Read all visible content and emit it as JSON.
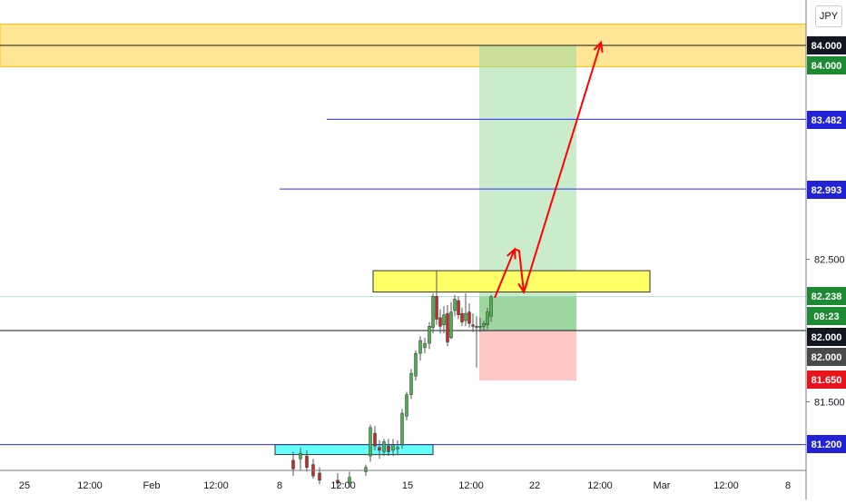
{
  "currency": "JPY",
  "colors": {
    "up": "#26a69a",
    "up_fill": "#4caf50",
    "down": "#ef5350",
    "down_fill": "#c62828",
    "target_zone": "#ffc107",
    "target_zone_fill": "#ffe082",
    "resistance_box": "#ffff66",
    "support_box": "#66ffff",
    "level_line": "#2a2aff",
    "arrow": "#ff0000",
    "profit_zone": "#9fdd9f",
    "loss_zone": "#ffb3b3"
  },
  "chart_data": {
    "type": "candlestick",
    "x_axis": {
      "tick_labels": [
        "25",
        "12:00",
        "Feb",
        "12:00",
        "8",
        "12:00",
        "15",
        "12:00",
        "22",
        "12:00",
        "Mar",
        "12:00",
        "8"
      ]
    },
    "y_axis": {
      "range": [
        80.93,
        84.27
      ],
      "tick_labels": [
        "82.500",
        "81.500"
      ]
    },
    "price_labels": [
      {
        "value": "84.000",
        "style": "black"
      },
      {
        "value": "84.000",
        "style": "green"
      },
      {
        "value": "83.482",
        "style": "blue"
      },
      {
        "value": "82.993",
        "style": "blue"
      },
      {
        "value": "82.238",
        "style": "green"
      },
      {
        "value": "08:23",
        "style": "green"
      },
      {
        "value": "82.000",
        "style": "black"
      },
      {
        "value": "82.000",
        "style": "gray"
      },
      {
        "value": "81.650",
        "style": "red"
      },
      {
        "value": "81.200",
        "style": "blue"
      }
    ],
    "levels": [
      {
        "price": 84.0,
        "color": "black",
        "from_x": 0
      },
      {
        "price": 83.482,
        "color": "blue",
        "from_x": 360
      },
      {
        "price": 82.993,
        "color": "blue",
        "from_x": 308
      },
      {
        "price": 82.238,
        "color": "green-faint",
        "from_x": 0
      },
      {
        "price": 82.0,
        "color": "black",
        "from_x": 0
      },
      {
        "price": 81.2,
        "color": "blue",
        "from_x": 0
      }
    ],
    "zones": {
      "target": {
        "top": 84.15,
        "bottom": 83.85
      },
      "resistance": {
        "top": 82.42,
        "bottom": 82.27,
        "x_from": 411,
        "x_to": 716
      },
      "support": {
        "top": 81.2,
        "bottom": 81.13,
        "x_from": 303,
        "x_to": 477
      }
    },
    "trade": {
      "entry": 82.0,
      "take_profit": 84.0,
      "stop_loss": 81.65,
      "current": 82.238,
      "x_from": 528,
      "x_to": 635
    },
    "projection_path": [
      [
        545,
        82.23
      ],
      [
        567,
        82.57
      ],
      [
        572,
        82.56
      ],
      [
        577,
        82.27
      ],
      [
        662,
        84.02
      ]
    ],
    "candles": [
      {
        "x": 323,
        "o": 81.09,
        "h": 81.15,
        "l": 80.98,
        "c": 81.03
      },
      {
        "x": 331,
        "o": 81.1,
        "h": 81.18,
        "l": 81.02,
        "c": 81.14
      },
      {
        "x": 338,
        "o": 81.12,
        "h": 81.16,
        "l": 81.01,
        "c": 81.04
      },
      {
        "x": 345,
        "o": 81.06,
        "h": 81.1,
        "l": 80.96,
        "c": 80.98
      },
      {
        "x": 352,
        "o": 81.0,
        "h": 81.04,
        "l": 80.92,
        "c": 80.95
      },
      {
        "x": 372,
        "o": 80.95,
        "h": 81.0,
        "l": 80.9,
        "c": 80.93
      },
      {
        "x": 385,
        "o": 80.93,
        "h": 81.01,
        "l": 80.9,
        "c": 80.97
      },
      {
        "x": 403,
        "o": 81.01,
        "h": 81.06,
        "l": 80.98,
        "c": 81.04
      },
      {
        "x": 408,
        "o": 81.12,
        "h": 81.34,
        "l": 81.08,
        "c": 81.32
      },
      {
        "x": 413,
        "o": 81.28,
        "h": 81.33,
        "l": 81.16,
        "c": 81.19
      },
      {
        "x": 418,
        "o": 81.18,
        "h": 81.23,
        "l": 81.1,
        "c": 81.16
      },
      {
        "x": 423,
        "o": 81.15,
        "h": 81.24,
        "l": 81.12,
        "c": 81.22
      },
      {
        "x": 428,
        "o": 81.19,
        "h": 81.24,
        "l": 81.12,
        "c": 81.15
      },
      {
        "x": 433,
        "o": 81.16,
        "h": 81.24,
        "l": 81.12,
        "c": 81.2
      },
      {
        "x": 438,
        "o": 81.17,
        "h": 81.23,
        "l": 81.13,
        "c": 81.18
      },
      {
        "x": 443,
        "o": 81.2,
        "h": 81.45,
        "l": 81.17,
        "c": 81.42
      },
      {
        "x": 448,
        "o": 81.4,
        "h": 81.57,
        "l": 81.37,
        "c": 81.55
      },
      {
        "x": 453,
        "o": 81.55,
        "h": 81.73,
        "l": 81.52,
        "c": 81.7
      },
      {
        "x": 458,
        "o": 81.68,
        "h": 81.86,
        "l": 81.65,
        "c": 81.84
      },
      {
        "x": 463,
        "o": 81.84,
        "h": 81.96,
        "l": 81.79,
        "c": 81.93
      },
      {
        "x": 468,
        "o": 81.88,
        "h": 81.95,
        "l": 81.84,
        "c": 81.91
      },
      {
        "x": 473,
        "o": 81.91,
        "h": 82.06,
        "l": 81.87,
        "c": 82.03
      },
      {
        "x": 477,
        "o": 82.02,
        "h": 82.26,
        "l": 81.98,
        "c": 82.24
      },
      {
        "x": 481,
        "o": 82.24,
        "h": 82.42,
        "l": 82.04,
        "c": 82.08
      },
      {
        "x": 485,
        "o": 82.09,
        "h": 82.15,
        "l": 81.98,
        "c": 82.03
      },
      {
        "x": 489,
        "o": 82.04,
        "h": 82.17,
        "l": 81.98,
        "c": 82.11
      },
      {
        "x": 493,
        "o": 82.12,
        "h": 82.18,
        "l": 81.89,
        "c": 81.92
      },
      {
        "x": 497,
        "o": 81.95,
        "h": 82.2,
        "l": 81.94,
        "c": 82.13
      },
      {
        "x": 501,
        "o": 82.14,
        "h": 82.25,
        "l": 82.1,
        "c": 82.22
      },
      {
        "x": 505,
        "o": 82.21,
        "h": 82.24,
        "l": 82.08,
        "c": 82.11
      },
      {
        "x": 509,
        "o": 82.12,
        "h": 82.16,
        "l": 82.03,
        "c": 82.06
      },
      {
        "x": 513,
        "o": 82.07,
        "h": 82.26,
        "l": 82.03,
        "c": 82.12
      },
      {
        "x": 517,
        "o": 82.13,
        "h": 82.19,
        "l": 82.02,
        "c": 82.05
      },
      {
        "x": 521,
        "o": 82.04,
        "h": 82.12,
        "l": 81.99,
        "c": 82.03
      },
      {
        "x": 525,
        "o": 82.02,
        "h": 82.1,
        "l": 81.74,
        "c": 82.03
      },
      {
        "x": 529,
        "o": 82.03,
        "h": 82.09,
        "l": 81.99,
        "c": 82.03
      },
      {
        "x": 533,
        "o": 82.03,
        "h": 82.07,
        "l": 82.0,
        "c": 82.05
      },
      {
        "x": 537,
        "o": 82.04,
        "h": 82.16,
        "l": 82.01,
        "c": 82.13
      },
      {
        "x": 541,
        "o": 82.1,
        "h": 82.25,
        "l": 82.06,
        "c": 82.238
      }
    ]
  }
}
